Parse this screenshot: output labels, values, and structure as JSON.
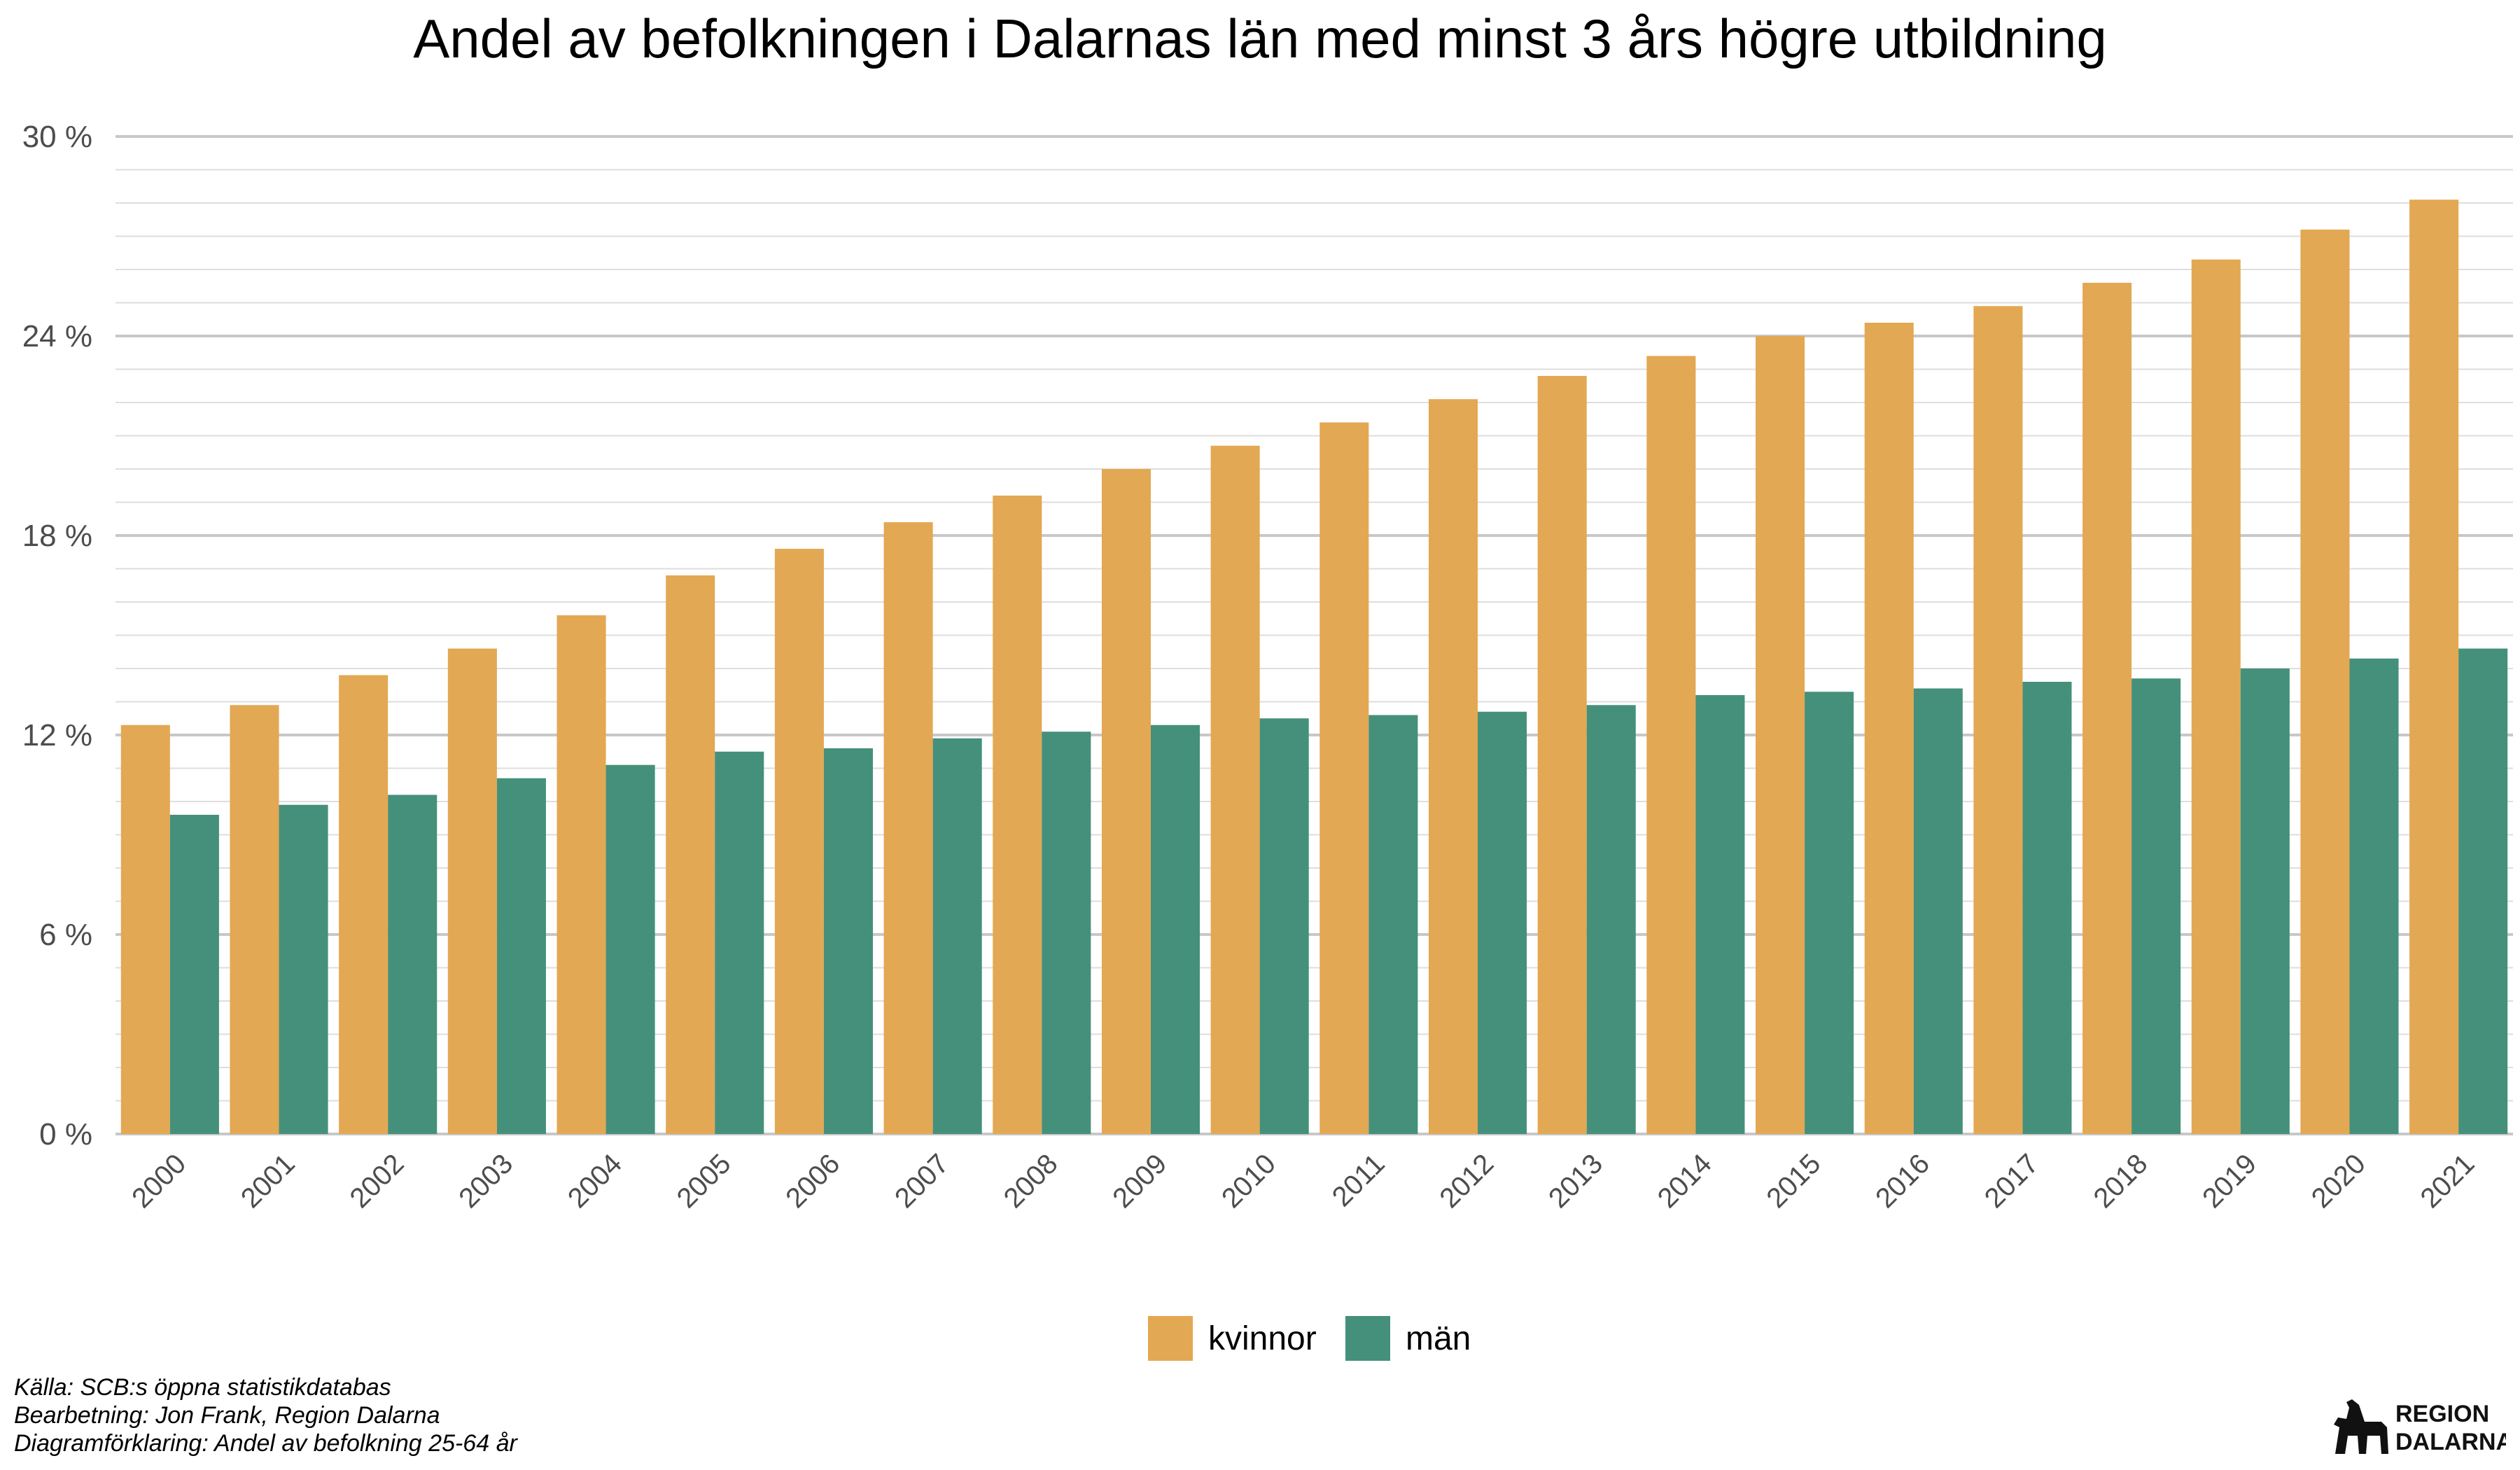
{
  "chart_data": {
    "type": "bar",
    "title": "Andel av befolkningen i Dalarnas län med minst 3 års högre utbildning",
    "categories": [
      "2000",
      "2001",
      "2002",
      "2003",
      "2004",
      "2005",
      "2006",
      "2007",
      "2008",
      "2009",
      "2010",
      "2011",
      "2012",
      "2013",
      "2014",
      "2015",
      "2016",
      "2017",
      "2018",
      "2019",
      "2020",
      "2021"
    ],
    "series": [
      {
        "name": "kvinnor",
        "color": "#E3A853",
        "values": [
          12.3,
          12.9,
          13.8,
          14.6,
          15.6,
          16.8,
          17.6,
          18.4,
          19.2,
          20.0,
          20.7,
          21.4,
          22.1,
          22.8,
          23.4,
          24.0,
          24.4,
          24.9,
          25.6,
          26.3,
          27.2,
          28.1
        ]
      },
      {
        "name": "män",
        "color": "#45907A",
        "values": [
          9.6,
          9.9,
          10.2,
          10.7,
          11.1,
          11.5,
          11.6,
          11.9,
          12.1,
          12.3,
          12.5,
          12.6,
          12.7,
          12.9,
          13.2,
          13.3,
          13.4,
          13.6,
          13.7,
          14.0,
          14.3,
          14.6
        ]
      }
    ],
    "yticks": [
      "0 %",
      "6 %",
      "12 %",
      "18 %",
      "24 %",
      "30 %"
    ],
    "ytick_values": [
      0,
      6,
      12,
      18,
      24,
      30
    ],
    "ylim": [
      0,
      30
    ],
    "minor_grid_step": 1,
    "grid": true,
    "legend_position": "bottom"
  },
  "caption": {
    "line1": "Källa: SCB:s öppna statistikdatabas",
    "line2": "Bearbetning: Jon Frank, Region Dalarna",
    "line3": "Diagramförklaring: Andel av befolkning 25-64 år"
  },
  "logo": {
    "line1": "REGION",
    "line2": "DALARNA",
    "icon": "dala-horse-icon"
  }
}
